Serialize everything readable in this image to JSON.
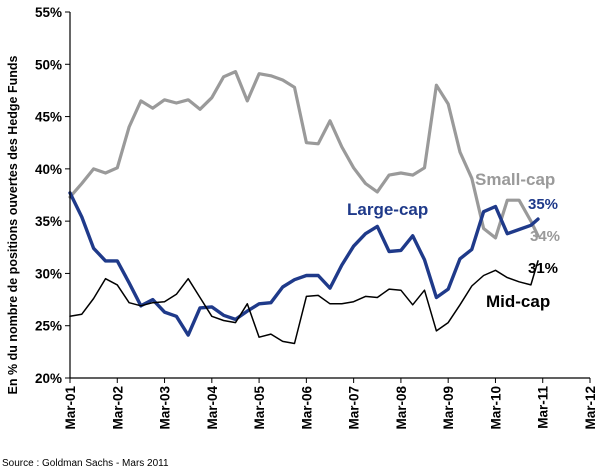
{
  "chart_data": {
    "type": "line",
    "title": "",
    "xlabel": "",
    "ylabel": "En % du nombre de positions ouvertes des Hedge Funds",
    "ylim": [
      20,
      55
    ],
    "y_ticks": [
      "20%",
      "25%",
      "30%",
      "35%",
      "40%",
      "45%",
      "50%",
      "55%"
    ],
    "x_ticks": [
      "Mar-01",
      "Mar-02",
      "Mar-03",
      "Mar-04",
      "Mar-05",
      "Mar-06",
      "Mar-07",
      "Mar-08",
      "Mar-09",
      "Mar-10",
      "Mar-11",
      "Mar-12"
    ],
    "xlim": [
      2001,
      2012
    ],
    "grid": false,
    "legend": "direct labels",
    "series": [
      {
        "name": "Small-cap",
        "end_label": "34%",
        "color": "#9a9a9a",
        "x": [
          2001.0,
          2001.25,
          2001.5,
          2001.75,
          2002.0,
          2002.25,
          2002.5,
          2002.75,
          2003.0,
          2003.25,
          2003.5,
          2003.75,
          2004.0,
          2004.25,
          2004.5,
          2004.75,
          2005.0,
          2005.25,
          2005.5,
          2005.75,
          2006.0,
          2006.25,
          2006.5,
          2006.75,
          2007.0,
          2007.25,
          2007.5,
          2007.75,
          2008.0,
          2008.25,
          2008.5,
          2008.75,
          2009.0,
          2009.25,
          2009.5,
          2009.75,
          2010.0,
          2010.25,
          2010.5,
          2010.75,
          2010.9
        ],
        "values": [
          37.3,
          38.6,
          40.0,
          39.6,
          40.1,
          44.0,
          46.5,
          45.8,
          46.6,
          46.3,
          46.6,
          45.7,
          46.8,
          48.8,
          49.3,
          46.5,
          49.1,
          48.9,
          48.5,
          47.8,
          42.5,
          42.4,
          44.6,
          42.1,
          40.1,
          38.6,
          37.8,
          39.4,
          39.6,
          39.4,
          40.1,
          48.0,
          46.2,
          41.6,
          39.1,
          34.3,
          33.4,
          37.0,
          37.0,
          35.0,
          33.6
        ]
      },
      {
        "name": "Large-cap",
        "end_label": "35%",
        "color": "#1f3a8a",
        "x": [
          2001.0,
          2001.25,
          2001.5,
          2001.75,
          2002.0,
          2002.25,
          2002.5,
          2002.75,
          2003.0,
          2003.25,
          2003.5,
          2003.75,
          2004.0,
          2004.25,
          2004.5,
          2004.75,
          2005.0,
          2005.25,
          2005.5,
          2005.75,
          2006.0,
          2006.25,
          2006.5,
          2006.75,
          2007.0,
          2007.25,
          2007.5,
          2007.75,
          2008.0,
          2008.25,
          2008.5,
          2008.75,
          2009.0,
          2009.25,
          2009.5,
          2009.75,
          2010.0,
          2010.25,
          2010.5,
          2010.75,
          2010.9
        ],
        "values": [
          37.7,
          35.4,
          32.4,
          31.2,
          31.2,
          29.1,
          26.9,
          27.5,
          26.3,
          25.9,
          24.1,
          26.7,
          26.8,
          26.0,
          25.6,
          26.4,
          27.1,
          27.2,
          28.7,
          29.4,
          29.8,
          29.8,
          28.6,
          30.8,
          32.6,
          33.8,
          34.5,
          32.1,
          32.2,
          33.6,
          31.3,
          27.7,
          28.5,
          31.4,
          32.3,
          35.9,
          36.4,
          33.8,
          34.2,
          34.6,
          35.2
        ]
      },
      {
        "name": "Mid-cap",
        "end_label": "31%",
        "color": "#000000",
        "x": [
          2001.0,
          2001.25,
          2001.5,
          2001.75,
          2002.0,
          2002.25,
          2002.5,
          2002.75,
          2003.0,
          2003.25,
          2003.5,
          2003.75,
          2004.0,
          2004.25,
          2004.5,
          2004.75,
          2005.0,
          2005.25,
          2005.5,
          2005.75,
          2006.0,
          2006.25,
          2006.5,
          2006.75,
          2007.0,
          2007.25,
          2007.5,
          2007.75,
          2008.0,
          2008.25,
          2008.5,
          2008.75,
          2009.0,
          2009.25,
          2009.5,
          2009.75,
          2010.0,
          2010.25,
          2010.5,
          2010.75,
          2010.9
        ],
        "values": [
          25.9,
          26.1,
          27.6,
          29.5,
          28.9,
          27.2,
          26.9,
          27.2,
          27.3,
          28.0,
          29.5,
          27.7,
          25.9,
          25.5,
          25.3,
          27.1,
          23.9,
          24.2,
          23.5,
          23.3,
          27.8,
          27.9,
          27.1,
          27.1,
          27.3,
          27.8,
          27.7,
          28.5,
          28.4,
          27.0,
          28.4,
          24.5,
          25.3,
          27.0,
          28.8,
          29.8,
          30.3,
          29.6,
          29.2,
          28.9,
          31.2
        ]
      }
    ]
  },
  "source": "Source : Goldman Sachs - Mars 2011"
}
